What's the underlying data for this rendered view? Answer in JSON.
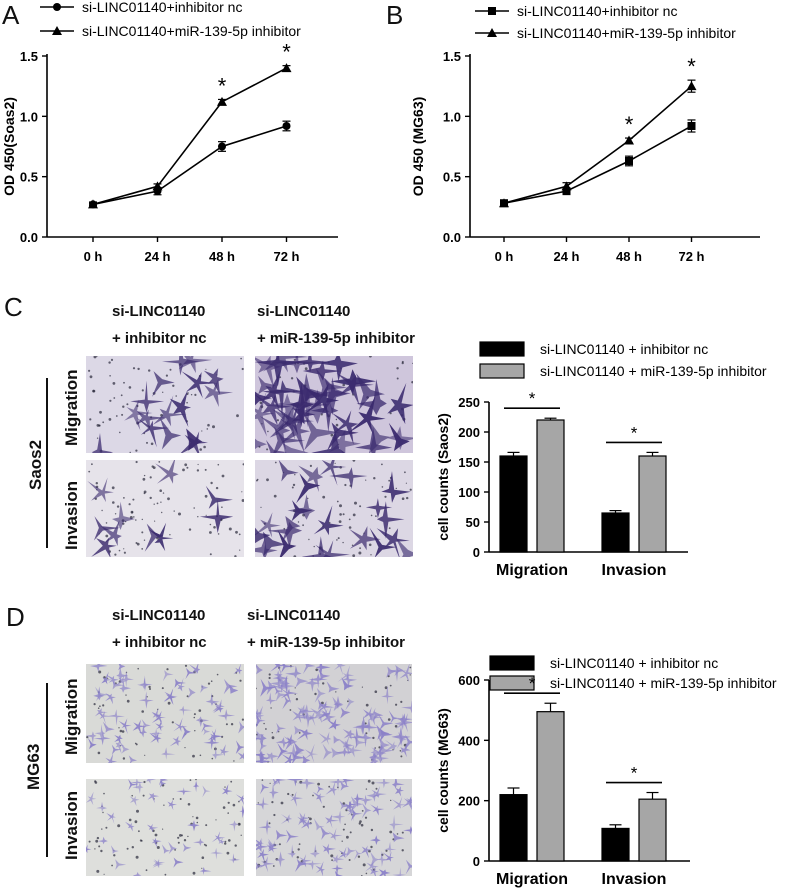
{
  "panels": {
    "A": "A",
    "B": "B",
    "C": "C",
    "D": "D"
  },
  "colors": {
    "stain_dark": "#3a2a6e",
    "stain_light": "#8a80c8",
    "bar_nc": "#000000",
    "bar_inh": "#a6a6a6"
  },
  "images": {
    "C": {
      "col_labels": [
        [
          "si-LINC01140",
          "+ inhibitor nc"
        ],
        [
          "si-LINC01140",
          "+ miR-139-5p inhibitor"
        ]
      ],
      "row_labels": [
        "Migration",
        "Invasion"
      ],
      "cell_line": "Saos2"
    },
    "D": {
      "col_labels": [
        [
          "si-LINC01140",
          "+ inhibitor nc"
        ],
        [
          "si-LINC01140",
          "+ miR-139-5p inhibitor"
        ]
      ],
      "row_labels": [
        "Migration",
        "Invasion"
      ],
      "cell_line": "MG63"
    }
  },
  "chart_data": [
    {
      "panel": "A",
      "type": "line",
      "x": [
        "0 h",
        "24 h",
        "48 h",
        "72 h"
      ],
      "ylabel": "OD 450(Soas2)",
      "ylim": [
        0,
        1.5
      ],
      "yticks": [
        "0.0",
        "0.5",
        "1.0",
        "1.5"
      ],
      "legend": "top",
      "series": [
        {
          "name": "si-LINC01140+inhibitor nc",
          "marker": "circle",
          "values": [
            0.27,
            0.38,
            0.75,
            0.92
          ],
          "err": [
            0.02,
            0.03,
            0.04,
            0.04
          ]
        },
        {
          "name": "si-LINC01140+miR-139-5p inhibitor",
          "marker": "triangle",
          "values": [
            0.27,
            0.42,
            1.12,
            1.4
          ],
          "err": [
            0.01,
            0.02,
            0.02,
            0.02
          ]
        }
      ],
      "significance": [
        "",
        "",
        "*",
        "*"
      ]
    },
    {
      "panel": "B",
      "type": "line",
      "x": [
        "0 h",
        "24 h",
        "48 h",
        "72 h"
      ],
      "ylabel": "OD 450 (MG63)",
      "ylim": [
        0,
        1.5
      ],
      "yticks": [
        "0.0",
        "0.5",
        "1.0",
        "1.5"
      ],
      "legend": "top",
      "series": [
        {
          "name": "si-LINC01140+inhibitor nc",
          "marker": "square",
          "values": [
            0.28,
            0.38,
            0.63,
            0.92
          ],
          "err": [
            0.01,
            0.02,
            0.04,
            0.05
          ]
        },
        {
          "name": "si-LINC01140+miR-139-5p inhibitor",
          "marker": "triangle",
          "values": [
            0.28,
            0.42,
            0.8,
            1.25
          ],
          "err": [
            0.01,
            0.03,
            0.02,
            0.05
          ]
        }
      ],
      "significance": [
        "",
        "",
        "*",
        "*"
      ]
    },
    {
      "panel": "C",
      "type": "bar",
      "categories": [
        "Migration",
        "Invasion"
      ],
      "ylabel": "cell counts (Saos2)",
      "ylim": [
        0,
        250
      ],
      "yticks": [
        "0",
        "50",
        "100",
        "150",
        "200",
        "250"
      ],
      "legend": "top",
      "series": [
        {
          "name": "si-LINC01140 + inhibitor nc",
          "values": [
            160,
            65
          ],
          "err": [
            6,
            4
          ]
        },
        {
          "name": "si-LINC01140  + miR-139-5p inhibitor",
          "values": [
            220,
            160
          ],
          "err": [
            3,
            6
          ]
        }
      ],
      "significance": [
        "*",
        "*"
      ]
    },
    {
      "panel": "D",
      "type": "bar",
      "categories": [
        "Migration",
        "Invasion"
      ],
      "ylabel": "cell counts (MG63)",
      "ylim": [
        0,
        600
      ],
      "yticks": [
        "0",
        "200",
        "400",
        "600"
      ],
      "legend": "top",
      "series": [
        {
          "name": "si-LINC01140 + inhibitor nc",
          "values": [
            220,
            108
          ],
          "err": [
            22,
            12
          ]
        },
        {
          "name": "si-LINC01140 + miR-139-5p inhibitor",
          "values": [
            495,
            205
          ],
          "err": [
            28,
            22
          ]
        }
      ],
      "significance": [
        "*",
        "*"
      ]
    }
  ]
}
